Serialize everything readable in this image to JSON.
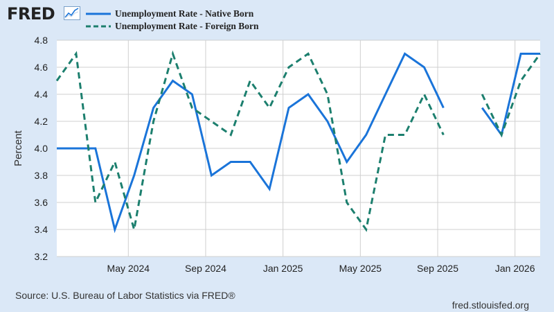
{
  "brand": {
    "name": "FRED",
    "logo_icon": "trend-chart-icon"
  },
  "footer": {
    "source": "Source: U.S. Bureau of Labor Statistics via FRED®",
    "url": "fred.stlouisfed.org"
  },
  "colors": {
    "background": "#dbe8f7",
    "plot_bg": "#ffffff",
    "grid": "#cfcfcf",
    "native": "#1a74d9",
    "foreign": "#1c7f6e"
  },
  "chart_data": {
    "type": "line",
    "title": "",
    "ylabel": "Percent",
    "xlabel": "",
    "ylim": [
      3.2,
      4.8
    ],
    "yticks": [
      "3.2",
      "3.4",
      "3.6",
      "3.8",
      "4.0",
      "4.2",
      "4.4",
      "4.6",
      "4.8"
    ],
    "xticks": [
      {
        "label": "May 2024",
        "x": 3.7
      },
      {
        "label": "Sep 2024",
        "x": 7.7
      },
      {
        "label": "Jan 2025",
        "x": 11.7
      },
      {
        "label": "May 2025",
        "x": 15.7
      },
      {
        "label": "Sep 2025",
        "x": 19.7
      },
      {
        "label": "Jan 2026",
        "x": 23.7
      }
    ],
    "x": [
      "Jan 2024",
      "Feb 2024",
      "Mar 2024",
      "Apr 2024",
      "May 2024",
      "Jun 2024",
      "Jul 2024",
      "Aug 2024",
      "Sep 2024",
      "Oct 2024",
      "Nov 2024",
      "Dec 2024",
      "Jan 2025",
      "Feb 2025",
      "Mar 2025",
      "Apr 2025",
      "May 2025",
      "Jun 2025",
      "Jul 2025",
      "Aug 2025",
      "Sep 2025",
      "Oct 2025",
      "Nov 2025",
      "Dec 2025",
      "Jan 2026",
      "Feb 2026"
    ],
    "series": [
      {
        "name": "Unemployment Rate - Native Born",
        "style": "solid",
        "values": [
          4.0,
          4.0,
          4.0,
          3.4,
          3.8,
          4.3,
          4.5,
          4.4,
          3.8,
          3.9,
          3.9,
          3.7,
          4.3,
          4.4,
          4.2,
          3.9,
          4.1,
          4.4,
          4.7,
          4.6,
          4.3,
          null,
          4.3,
          4.1,
          4.7,
          4.7
        ]
      },
      {
        "name": "Unemployment Rate - Foreign Born",
        "style": "dashed",
        "values": [
          4.5,
          4.7,
          3.6,
          3.9,
          3.4,
          4.2,
          4.7,
          4.3,
          4.2,
          4.1,
          4.5,
          4.3,
          4.6,
          4.7,
          4.4,
          3.6,
          3.4,
          4.1,
          4.1,
          4.4,
          4.1,
          null,
          4.4,
          4.1,
          4.5,
          4.7
        ]
      }
    ]
  }
}
